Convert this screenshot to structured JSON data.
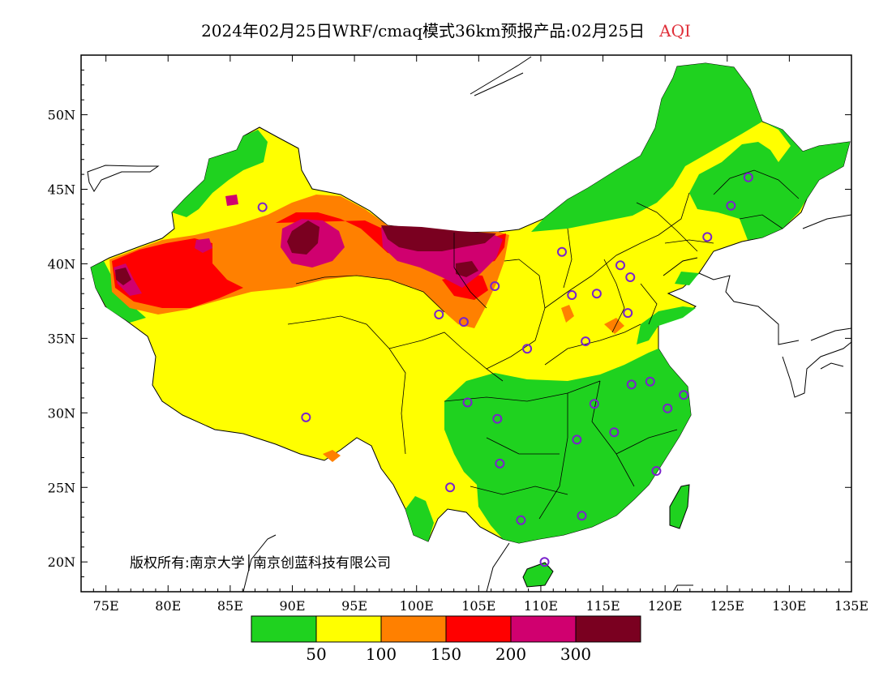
{
  "title": {
    "main": "2024年02月25日WRF/cmaq模式36km预报产品:02月25日",
    "variable": "AQI"
  },
  "axes": {
    "lat_labels": [
      "50N",
      "45N",
      "40N",
      "35N",
      "30N",
      "25N",
      "20N"
    ],
    "lat_values": [
      50,
      45,
      40,
      35,
      30,
      25,
      20
    ],
    "lon_labels": [
      "75E",
      "80E",
      "85E",
      "90E",
      "95E",
      "100E",
      "105E",
      "110E",
      "115E",
      "120E",
      "125E",
      "130E",
      "135E"
    ],
    "lon_values": [
      75,
      80,
      85,
      90,
      95,
      100,
      105,
      110,
      115,
      120,
      125,
      130,
      135
    ],
    "lon_range": [
      73,
      135
    ],
    "lat_range": [
      18,
      54
    ]
  },
  "copyright": "版权所有:南京大学│南京创蓝科技有限公司",
  "legend": {
    "colors": [
      "#1fd21f",
      "#ffff00",
      "#ff8000",
      "#ff0000",
      "#d0006f",
      "#7a0020"
    ],
    "labels": [
      "50",
      "100",
      "150",
      "200",
      "300"
    ]
  },
  "colors": {
    "good": "#1fd21f",
    "moderate": "#ffff00",
    "light": "#ff8000",
    "medium": "#ff0000",
    "heavy": "#d0006f",
    "severe": "#7a0020",
    "station_marker": "#7a22cc"
  },
  "stations": [
    {
      "lon": 126.7,
      "lat": 45.8
    },
    {
      "lon": 125.3,
      "lat": 43.9
    },
    {
      "lon": 123.4,
      "lat": 41.8
    },
    {
      "lon": 87.6,
      "lat": 43.8
    },
    {
      "lon": 111.7,
      "lat": 40.8
    },
    {
      "lon": 116.4,
      "lat": 39.9
    },
    {
      "lon": 117.2,
      "lat": 39.1
    },
    {
      "lon": 106.3,
      "lat": 38.5
    },
    {
      "lon": 112.5,
      "lat": 37.9
    },
    {
      "lon": 114.5,
      "lat": 38.0
    },
    {
      "lon": 117.0,
      "lat": 36.7
    },
    {
      "lon": 101.8,
      "lat": 36.6
    },
    {
      "lon": 103.8,
      "lat": 36.1
    },
    {
      "lon": 108.9,
      "lat": 34.3
    },
    {
      "lon": 113.6,
      "lat": 34.8
    },
    {
      "lon": 117.3,
      "lat": 31.9
    },
    {
      "lon": 118.8,
      "lat": 32.1
    },
    {
      "lon": 121.5,
      "lat": 31.2
    },
    {
      "lon": 120.2,
      "lat": 30.3
    },
    {
      "lon": 114.3,
      "lat": 30.6
    },
    {
      "lon": 104.1,
      "lat": 30.7
    },
    {
      "lon": 106.5,
      "lat": 29.6
    },
    {
      "lon": 112.9,
      "lat": 28.2
    },
    {
      "lon": 115.9,
      "lat": 28.7
    },
    {
      "lon": 119.3,
      "lat": 26.1
    },
    {
      "lon": 106.7,
      "lat": 26.6
    },
    {
      "lon": 102.7,
      "lat": 25.0
    },
    {
      "lon": 113.3,
      "lat": 23.1
    },
    {
      "lon": 108.4,
      "lat": 22.8
    },
    {
      "lon": 110.3,
      "lat": 20.0
    },
    {
      "lon": 91.1,
      "lat": 29.7
    }
  ]
}
